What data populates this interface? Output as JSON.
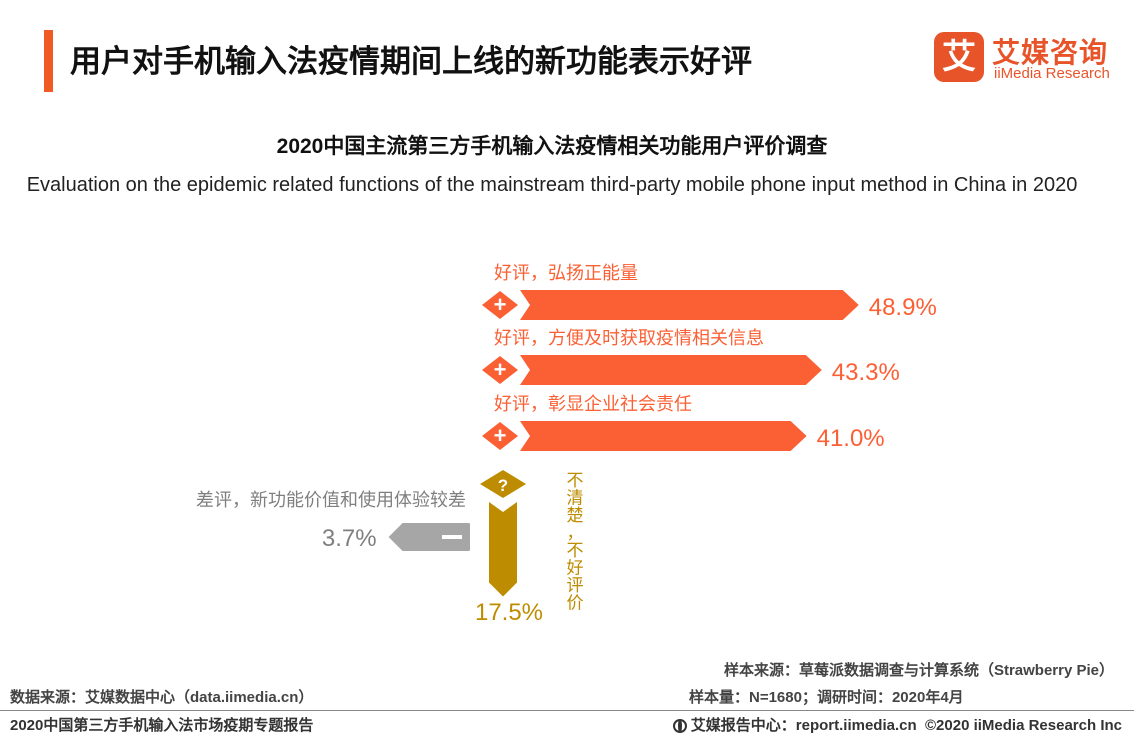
{
  "header": {
    "title": "用户对手机输入法疫情期间上线的新功能表示好评",
    "logo": {
      "mark": "艾",
      "name_cn": "艾媒咨询",
      "name_en": "iiMedia Research"
    }
  },
  "chart_data": {
    "type": "bar",
    "title": "2020中国主流第三方手机输入法疫情相关功能用户评价调查",
    "subtitle": "Evaluation on the epidemic related functions of the mainstream third-party mobile phone input method in China in 2020",
    "categories": [
      "好评，弘扬正能量",
      "好评，方便及时获取疫情相关信息",
      "好评，彰显企业社会责任",
      "差评，新功能价值和使用体验较差",
      "不清楚，不好评价"
    ],
    "values": [
      48.9,
      43.3,
      41.0,
      3.7,
      17.5
    ],
    "value_labels": [
      "48.9%",
      "43.3%",
      "41.0%",
      "3.7%",
      "17.5%"
    ],
    "unit": "%",
    "groups": [
      "positive",
      "positive",
      "positive",
      "negative",
      "unclear"
    ],
    "colors": {
      "positive": "#fb6035",
      "negative": "#a6a6a6",
      "unclear": "#be8c00"
    },
    "icons": {
      "positive": "plus-icon",
      "negative": "minus-icon",
      "unclear": "question-icon"
    },
    "marker_symbols": {
      "positive": "+",
      "negative": "−",
      "unclear": "?"
    }
  },
  "footer": {
    "data_source": "数据来源：艾媒数据中心（data.iimedia.cn）",
    "sample_source": "样本来源：草莓派数据调查与计算系统（Strawberry Pie）",
    "sample_size": "样本量：N=1680；调研时间：2020年4月",
    "report_name": "2020中国第三方手机输入法市场疫期专题报告",
    "report_center": "艾媒报告中心：report.iimedia.cn",
    "copyright": "©2020  iiMedia Research  Inc"
  }
}
